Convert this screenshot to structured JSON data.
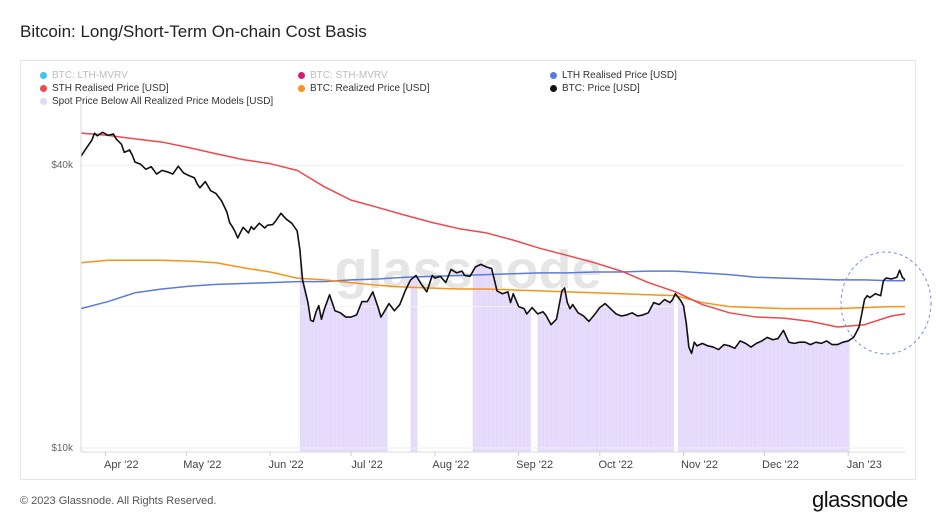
{
  "title": "Bitcoin: Long/Short-Term On-chain Cost Basis",
  "footer": {
    "copyright": "© 2023 Glassnode. All Rights Reserved.",
    "logo": "glassnode"
  },
  "watermark": "glassnode",
  "colors": {
    "lth_mvrv": "#40c4f1",
    "sth_mvrv": "#d81b78",
    "lth_price": "#5c7bd9",
    "sth_price": "#f0474a",
    "realized": "#f7931a",
    "btc": "#111111",
    "shade": "#e3d8fb"
  },
  "legend": [
    {
      "label": "BTC: LTH-MVRV",
      "color": "#40c4f1",
      "disabled": true
    },
    {
      "label": "BTC: STH-MVRV",
      "color": "#d81b78",
      "disabled": true
    },
    {
      "label": "LTH Realised Price [USD]",
      "color": "#5c7bd9",
      "disabled": false
    },
    {
      "label": "STH Realised Price [USD]",
      "color": "#f0474a",
      "disabled": false
    },
    {
      "label": "BTC: Realized Price [USD]",
      "color": "#f7931a",
      "disabled": false
    },
    {
      "label": "BTC: Price [USD]",
      "color": "#111111",
      "disabled": false
    },
    {
      "label": "Spot Price Below All Realized Price Models [USD]",
      "color": "#e3d8fb",
      "disabled": false
    }
  ],
  "chart_data": {
    "type": "line",
    "title": "Bitcoin: Long/Short-Term On-chain Cost Basis",
    "y_scale": "log",
    "ylim": [
      10000,
      48000
    ],
    "y_ticks": [
      {
        "label": "$40k",
        "value": 40000
      },
      {
        "label": "$10k",
        "value": 10000
      }
    ],
    "x_range_days": [
      0,
      305
    ],
    "x_ticks": [
      {
        "label": "Apr '22",
        "day": 9
      },
      {
        "label": "May '22",
        "day": 39
      },
      {
        "label": "Jun '22",
        "day": 70
      },
      {
        "label": "Jul '22",
        "day": 100
      },
      {
        "label": "Aug '22",
        "day": 131
      },
      {
        "label": "Sep '22",
        "day": 162
      },
      {
        "label": "Oct '22",
        "day": 192
      },
      {
        "label": "Nov '22",
        "day": 223
      },
      {
        "label": "Dec '22",
        "day": 253
      },
      {
        "label": "Jan '23",
        "day": 284
      }
    ],
    "series": [
      {
        "name": "BTC: Price [USD]",
        "color": "#111111",
        "width": 1.6,
        "points": [
          [
            0,
            41800
          ],
          [
            2,
            43500
          ],
          [
            4,
            45200
          ],
          [
            5,
            46800
          ],
          [
            6,
            46200
          ],
          [
            8,
            47000
          ],
          [
            10,
            46300
          ],
          [
            12,
            46600
          ],
          [
            13,
            45500
          ],
          [
            15,
            44300
          ],
          [
            16,
            42600
          ],
          [
            18,
            43100
          ],
          [
            19,
            42000
          ],
          [
            20,
            40600
          ],
          [
            22,
            40200
          ],
          [
            23,
            39700
          ],
          [
            24,
            39200
          ],
          [
            26,
            39700
          ],
          [
            28,
            38300
          ],
          [
            30,
            39000
          ],
          [
            32,
            38700
          ],
          [
            34,
            38300
          ],
          [
            36,
            39800
          ],
          [
            38,
            38500
          ],
          [
            40,
            38000
          ],
          [
            42,
            37600
          ],
          [
            43,
            36500
          ],
          [
            44,
            35800
          ],
          [
            46,
            36900
          ],
          [
            48,
            35300
          ],
          [
            50,
            34800
          ],
          [
            52,
            33600
          ],
          [
            54,
            31800
          ],
          [
            55,
            30200
          ],
          [
            56,
            29600
          ],
          [
            57,
            28900
          ],
          [
            58,
            28000
          ],
          [
            60,
            29500
          ],
          [
            62,
            28700
          ],
          [
            63,
            29600
          ],
          [
            64,
            29200
          ],
          [
            66,
            30100
          ],
          [
            68,
            29400
          ],
          [
            69,
            29800
          ],
          [
            71,
            29900
          ],
          [
            72,
            30400
          ],
          [
            74,
            31600
          ],
          [
            76,
            30700
          ],
          [
            78,
            30100
          ],
          [
            80,
            29000
          ],
          [
            81,
            26500
          ],
          [
            82,
            22800
          ],
          [
            84,
            20400
          ],
          [
            85,
            18700
          ],
          [
            86,
            18600
          ],
          [
            87,
            19500
          ],
          [
            88,
            20100
          ],
          [
            89,
            18800
          ],
          [
            90,
            19700
          ],
          [
            92,
            21200
          ],
          [
            94,
            19600
          ],
          [
            96,
            19400
          ],
          [
            98,
            19000
          ],
          [
            100,
            19000
          ],
          [
            102,
            19200
          ],
          [
            104,
            20500
          ],
          [
            106,
            20500
          ],
          [
            108,
            21500
          ],
          [
            110,
            19900
          ],
          [
            111,
            19000
          ],
          [
            112,
            19400
          ],
          [
            114,
            20300
          ],
          [
            116,
            19600
          ],
          [
            118,
            20200
          ],
          [
            120,
            21600
          ],
          [
            122,
            22800
          ],
          [
            124,
            23300
          ],
          [
            126,
            22300
          ],
          [
            128,
            21500
          ],
          [
            130,
            23300
          ],
          [
            131,
            23000
          ],
          [
            133,
            23200
          ],
          [
            135,
            22500
          ],
          [
            137,
            24000
          ],
          [
            139,
            23600
          ],
          [
            141,
            23800
          ],
          [
            142,
            23300
          ],
          [
            144,
            23200
          ],
          [
            146,
            24300
          ],
          [
            148,
            24600
          ],
          [
            150,
            24300
          ],
          [
            152,
            24100
          ],
          [
            154,
            21600
          ],
          [
            156,
            21300
          ],
          [
            158,
            21500
          ],
          [
            159,
            20400
          ],
          [
            160,
            21300
          ],
          [
            162,
            20000
          ],
          [
            164,
            19800
          ],
          [
            165,
            19300
          ],
          [
            167,
            19900
          ],
          [
            169,
            19300
          ],
          [
            171,
            19500
          ],
          [
            172,
            19200
          ],
          [
            174,
            18300
          ],
          [
            176,
            18800
          ],
          [
            178,
            21600
          ],
          [
            179,
            21900
          ],
          [
            180,
            20400
          ],
          [
            181,
            19800
          ],
          [
            182,
            20200
          ],
          [
            184,
            19400
          ],
          [
            186,
            19100
          ],
          [
            188,
            18600
          ],
          [
            190,
            19200
          ],
          [
            192,
            19900
          ],
          [
            194,
            20300
          ],
          [
            196,
            19800
          ],
          [
            198,
            19300
          ],
          [
            200,
            19100
          ],
          [
            202,
            19200
          ],
          [
            204,
            19400
          ],
          [
            206,
            19100
          ],
          [
            208,
            19200
          ],
          [
            210,
            19400
          ],
          [
            212,
            20400
          ],
          [
            214,
            20200
          ],
          [
            216,
            20700
          ],
          [
            218,
            20400
          ],
          [
            219,
            20700
          ],
          [
            220,
            21300
          ],
          [
            222,
            20600
          ],
          [
            223,
            20100
          ],
          [
            224,
            18500
          ],
          [
            225,
            16400
          ],
          [
            226,
            15900
          ],
          [
            227,
            16800
          ],
          [
            228,
            16500
          ],
          [
            230,
            16700
          ],
          [
            232,
            16500
          ],
          [
            234,
            16400
          ],
          [
            236,
            16200
          ],
          [
            238,
            16600
          ],
          [
            240,
            16500
          ],
          [
            242,
            16300
          ],
          [
            244,
            16900
          ],
          [
            246,
            16700
          ],
          [
            248,
            16400
          ],
          [
            250,
            16700
          ],
          [
            252,
            16900
          ],
          [
            254,
            17200
          ],
          [
            256,
            17000
          ],
          [
            258,
            17100
          ],
          [
            260,
            17800
          ],
          [
            262,
            16800
          ],
          [
            264,
            16700
          ],
          [
            266,
            16800
          ],
          [
            268,
            16800
          ],
          [
            270,
            16600
          ],
          [
            272,
            16800
          ],
          [
            274,
            16700
          ],
          [
            276,
            16900
          ],
          [
            278,
            16600
          ],
          [
            280,
            16600
          ],
          [
            282,
            16800
          ],
          [
            284,
            16900
          ],
          [
            286,
            17200
          ],
          [
            288,
            18100
          ],
          [
            289,
            19300
          ],
          [
            290,
            20700
          ],
          [
            291,
            21100
          ],
          [
            292,
            20900
          ],
          [
            294,
            21300
          ],
          [
            296,
            21100
          ],
          [
            297,
            22700
          ],
          [
            298,
            23000
          ],
          [
            300,
            22900
          ],
          [
            302,
            23100
          ],
          [
            303,
            23900
          ],
          [
            304,
            23100
          ],
          [
            305,
            22800
          ]
        ]
      },
      {
        "name": "STH Realised Price [USD]",
        "color": "#f0474a",
        "width": 1.5,
        "points": [
          [
            0,
            46800
          ],
          [
            10,
            46300
          ],
          [
            20,
            45500
          ],
          [
            30,
            44800
          ],
          [
            40,
            43600
          ],
          [
            50,
            42300
          ],
          [
            60,
            41100
          ],
          [
            70,
            40300
          ],
          [
            80,
            39000
          ],
          [
            90,
            36000
          ],
          [
            100,
            33700
          ],
          [
            110,
            32500
          ],
          [
            120,
            31300
          ],
          [
            130,
            30200
          ],
          [
            140,
            29300
          ],
          [
            150,
            28700
          ],
          [
            160,
            27700
          ],
          [
            170,
            26600
          ],
          [
            180,
            25700
          ],
          [
            190,
            24800
          ],
          [
            200,
            23800
          ],
          [
            210,
            22500
          ],
          [
            220,
            21500
          ],
          [
            230,
            20200
          ],
          [
            240,
            19400
          ],
          [
            250,
            19000
          ],
          [
            260,
            18900
          ],
          [
            270,
            18600
          ],
          [
            280,
            18100
          ],
          [
            290,
            18300
          ],
          [
            300,
            19100
          ],
          [
            305,
            19300
          ]
        ]
      },
      {
        "name": "BTC: Realized Price [USD]",
        "color": "#f7931a",
        "width": 1.5,
        "points": [
          [
            0,
            24800
          ],
          [
            10,
            25100
          ],
          [
            20,
            25100
          ],
          [
            30,
            25100
          ],
          [
            40,
            25000
          ],
          [
            50,
            24800
          ],
          [
            60,
            24200
          ],
          [
            70,
            23700
          ],
          [
            80,
            23000
          ],
          [
            90,
            22800
          ],
          [
            100,
            22500
          ],
          [
            110,
            22200
          ],
          [
            120,
            22000
          ],
          [
            130,
            21900
          ],
          [
            140,
            21800
          ],
          [
            150,
            21800
          ],
          [
            160,
            21700
          ],
          [
            170,
            21600
          ],
          [
            180,
            21500
          ],
          [
            190,
            21400
          ],
          [
            200,
            21300
          ],
          [
            210,
            21200
          ],
          [
            220,
            21100
          ],
          [
            230,
            20400
          ],
          [
            240,
            20000
          ],
          [
            250,
            19900
          ],
          [
            260,
            19800
          ],
          [
            270,
            19800
          ],
          [
            280,
            19800
          ],
          [
            290,
            19900
          ],
          [
            300,
            20000
          ],
          [
            305,
            20000
          ]
        ]
      },
      {
        "name": "LTH Realised Price [USD]",
        "color": "#5c7bd9",
        "width": 1.5,
        "points": [
          [
            0,
            19800
          ],
          [
            10,
            20500
          ],
          [
            20,
            21400
          ],
          [
            30,
            21800
          ],
          [
            40,
            22100
          ],
          [
            50,
            22300
          ],
          [
            60,
            22400
          ],
          [
            70,
            22500
          ],
          [
            80,
            22600
          ],
          [
            90,
            22600
          ],
          [
            100,
            22800
          ],
          [
            110,
            22900
          ],
          [
            120,
            23100
          ],
          [
            130,
            23200
          ],
          [
            140,
            23300
          ],
          [
            150,
            23400
          ],
          [
            160,
            23500
          ],
          [
            170,
            23600
          ],
          [
            180,
            23600
          ],
          [
            190,
            23700
          ],
          [
            200,
            23700
          ],
          [
            210,
            23800
          ],
          [
            220,
            23800
          ],
          [
            230,
            23600
          ],
          [
            240,
            23400
          ],
          [
            250,
            23100
          ],
          [
            260,
            23000
          ],
          [
            270,
            22900
          ],
          [
            280,
            22800
          ],
          [
            290,
            22800
          ],
          [
            300,
            22700
          ],
          [
            305,
            22700
          ]
        ]
      }
    ],
    "shaded_regions": {
      "name": "Spot Price Below All Realized Price Models [USD]",
      "color": "#e3d8fb",
      "intervals": [
        [
          81,
          113
        ],
        [
          122,
          124
        ],
        [
          145,
          166
        ],
        [
          169,
          219
        ],
        [
          221,
          284
        ]
      ],
      "top": "price"
    },
    "annotation": {
      "type": "dashed-ellipse",
      "color": "#6f8ef0",
      "around_days": [
        285,
        305
      ]
    }
  }
}
